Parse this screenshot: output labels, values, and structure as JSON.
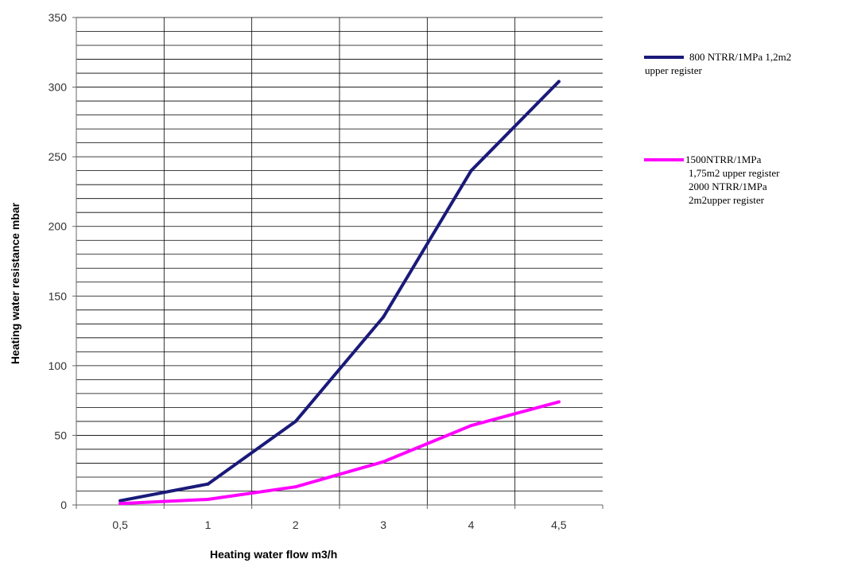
{
  "chart_data": {
    "type": "line",
    "title": "",
    "xlabel": "Heating water flow m3/h",
    "ylabel": "Heating water resistance  mbar",
    "categories": [
      "0,5",
      "1",
      "2",
      "3",
      "4",
      "4,5"
    ],
    "ylim": [
      0,
      350
    ],
    "yticks": [
      0,
      50,
      100,
      150,
      200,
      250,
      300,
      350
    ],
    "grid": true,
    "legend_position": "right",
    "series": [
      {
        "name": "800 NTRR/1MPa  1,2m2 upper register",
        "name_lines": [
          "800 NTRR/1MPa  1,2m2",
          "upper register"
        ],
        "color": "#1a1a7a",
        "values": [
          3,
          15,
          60,
          135,
          240,
          304
        ]
      },
      {
        "name": "1500NTRR/1MPa 1,75m2 upper register 2000 NTRR/1MPa 2m2upper register",
        "name_lines": [
          "1500NTRR/1MPa",
          "1,75m2 upper register",
          "2000 NTRR/1MPa",
          "2m2upper register"
        ],
        "color": "#ff00ff",
        "values": [
          1,
          4,
          13,
          31,
          57,
          74
        ]
      }
    ]
  }
}
